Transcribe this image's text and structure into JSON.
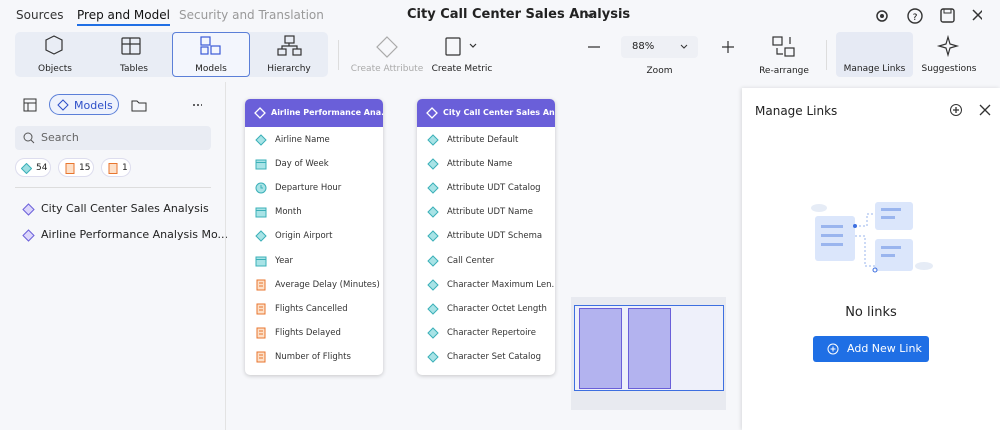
{
  "top_nav": {
    "tabs": [
      "Sources",
      "Prep and Model",
      "Security and Translation"
    ],
    "title": "City Call Center Sales Analysis"
  },
  "toolbar": {
    "object_tools": [
      "Objects",
      "Tables",
      "Models",
      "Hierarchy"
    ],
    "create_attribute": "Create Attribute",
    "create_metric": "Create Metric",
    "zoom": {
      "value": "88%",
      "label": "Zoom"
    },
    "rearrange": "Re-arrange",
    "manage_links": "Manage Links",
    "suggestions": "Suggestions"
  },
  "sidebar": {
    "mode": "Models",
    "search_placeholder": "Search",
    "counts": [
      54,
      15,
      1
    ],
    "models": [
      "City Call Center Sales Analysis",
      "Airline Performance Analysis Mo..."
    ]
  },
  "cards": [
    {
      "title": "Airline Performance Ana...",
      "items": [
        "Airline Name",
        "Day of Week",
        "Departure Hour",
        "Month",
        "Origin Airport",
        "Year",
        "Average Delay (Minutes)",
        "Flights Cancelled",
        "Flights Delayed",
        "Number of Flights"
      ]
    },
    {
      "title": "City Call Center Sales An...",
      "items": [
        "Attribute Default",
        "Attribute Name",
        "Attribute UDT Catalog",
        "Attribute UDT Name",
        "Attribute UDT Schema",
        "Call Center",
        "Character Maximum Len...",
        "Character Octet Length",
        "Character Repertoire",
        "Character Set Catalog"
      ]
    }
  ],
  "links_panel": {
    "title": "Manage Links",
    "empty_text": "No links",
    "button": "Add New Link"
  }
}
